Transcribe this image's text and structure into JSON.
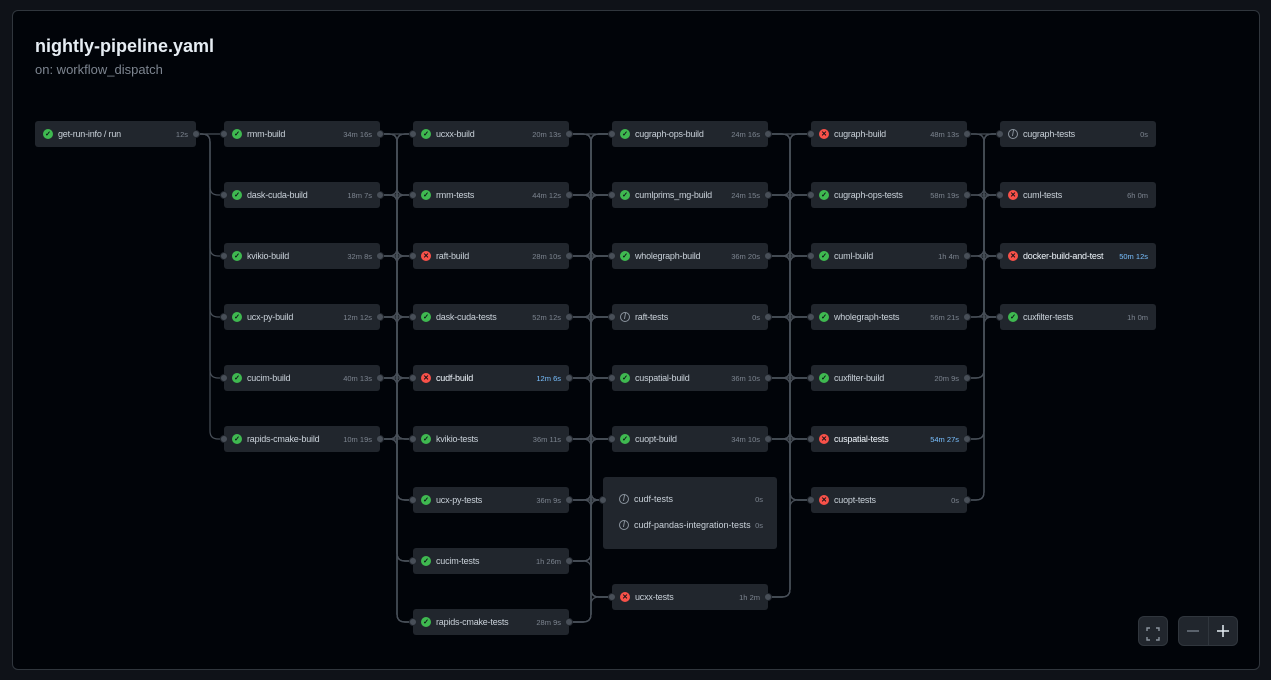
{
  "header": {
    "title": "nightly-pipeline.yaml",
    "trigger": "on: workflow_dispatch"
  },
  "colors": {
    "success": "#3fb950",
    "failure": "#f85149",
    "skipped": "#8b949e",
    "highlight_duration": "#79c0ff"
  },
  "columns": [
    {
      "jobs": [
        {
          "name": "get-run-info / run",
          "duration": "12s",
          "status": "success"
        }
      ]
    },
    {
      "jobs": [
        {
          "name": "rmm-build",
          "duration": "34m 16s",
          "status": "success"
        },
        {
          "name": "dask-cuda-build",
          "duration": "18m 7s",
          "status": "success"
        },
        {
          "name": "kvikio-build",
          "duration": "32m 8s",
          "status": "success"
        },
        {
          "name": "ucx-py-build",
          "duration": "12m 12s",
          "status": "success"
        },
        {
          "name": "cucim-build",
          "duration": "40m 13s",
          "status": "success"
        },
        {
          "name": "rapids-cmake-build",
          "duration": "10m 19s",
          "status": "success"
        }
      ]
    },
    {
      "jobs": [
        {
          "name": "ucxx-build",
          "duration": "20m 13s",
          "status": "success"
        },
        {
          "name": "rmm-tests",
          "duration": "44m 12s",
          "status": "success"
        },
        {
          "name": "raft-build",
          "duration": "28m 10s",
          "status": "failure"
        },
        {
          "name": "dask-cuda-tests",
          "duration": "52m 12s",
          "status": "success"
        },
        {
          "name": "cudf-build",
          "duration": "12m 6s",
          "status": "failure",
          "highlighted": true
        },
        {
          "name": "kvikio-tests",
          "duration": "36m 11s",
          "status": "success"
        },
        {
          "name": "ucx-py-tests",
          "duration": "36m 9s",
          "status": "success"
        },
        {
          "name": "cucim-tests",
          "duration": "1h 26m",
          "status": "success"
        },
        {
          "name": "rapids-cmake-tests",
          "duration": "28m 9s",
          "status": "success"
        }
      ]
    },
    {
      "jobs": [
        {
          "name": "cugraph-ops-build",
          "duration": "24m 16s",
          "status": "success"
        },
        {
          "name": "cumlprims_mg-build",
          "duration": "24m 15s",
          "status": "success"
        },
        {
          "name": "wholegraph-build",
          "duration": "36m 20s",
          "status": "success"
        },
        {
          "name": "raft-tests",
          "duration": "0s",
          "status": "skipped"
        },
        {
          "name": "cuspatial-build",
          "duration": "36m 10s",
          "status": "success"
        },
        {
          "name": "cuopt-build",
          "duration": "34m 10s",
          "status": "success"
        },
        {
          "group": [
            {
              "name": "cudf-tests",
              "duration": "0s",
              "status": "skipped"
            },
            {
              "name": "cudf-pandas-integration-tests",
              "duration": "0s",
              "status": "skipped"
            }
          ]
        },
        {
          "name": "ucxx-tests",
          "duration": "1h 2m",
          "status": "failure"
        }
      ]
    },
    {
      "jobs": [
        {
          "name": "cugraph-build",
          "duration": "48m 13s",
          "status": "failure"
        },
        {
          "name": "cugraph-ops-tests",
          "duration": "58m 19s",
          "status": "success"
        },
        {
          "name": "cuml-build",
          "duration": "1h 4m",
          "status": "success"
        },
        {
          "name": "wholegraph-tests",
          "duration": "56m 21s",
          "status": "success"
        },
        {
          "name": "cuxfilter-build",
          "duration": "20m 9s",
          "status": "success"
        },
        {
          "name": "cuspatial-tests",
          "duration": "54m 27s",
          "status": "failure",
          "highlighted": true
        },
        {
          "name": "cuopt-tests",
          "duration": "0s",
          "status": "failure"
        }
      ]
    },
    {
      "jobs": [
        {
          "name": "cugraph-tests",
          "duration": "0s",
          "status": "skipped"
        },
        {
          "name": "cuml-tests",
          "duration": "6h 0m",
          "status": "failure"
        },
        {
          "name": "docker-build-and-test",
          "duration": "50m 12s",
          "status": "failure",
          "highlighted": true
        },
        {
          "name": "cuxfilter-tests",
          "duration": "1h 0m",
          "status": "success"
        }
      ]
    }
  ],
  "controls": {
    "fullscreen_icon": "fullscreen-icon",
    "zoom_out_icon": "minus-icon",
    "zoom_in_icon": "plus-icon"
  }
}
